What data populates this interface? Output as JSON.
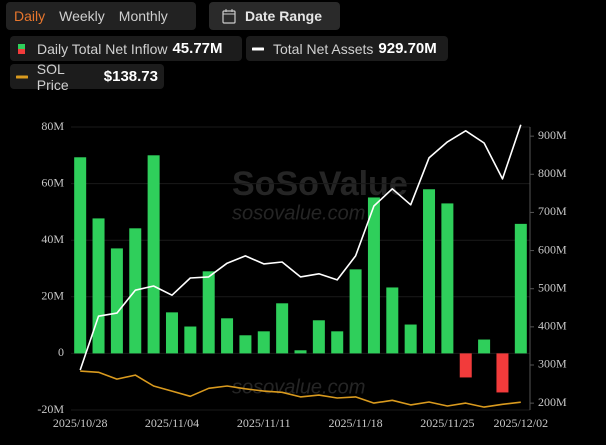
{
  "tabs": [
    "Daily",
    "Weekly",
    "Monthly"
  ],
  "active_tab": 0,
  "date_range_button": "Date Range",
  "watermark": {
    "brand": "SoSoValue",
    "url": "sosovalue.com"
  },
  "chart_data": {
    "type": "bar",
    "categories": [
      "2025/10/28",
      null,
      null,
      null,
      null,
      "2025/11/04",
      null,
      null,
      null,
      null,
      "2025/11/11",
      null,
      null,
      null,
      null,
      "2025/11/18",
      null,
      null,
      null,
      null,
      "2025/11/25",
      null,
      null,
      null,
      "2025/12/02"
    ],
    "ylim": [
      -20,
      80
    ],
    "yticks": [
      {
        "value": -20,
        "label": "-20M"
      },
      0,
      {
        "value": 20,
        "label": "20M"
      },
      {
        "value": 40,
        "label": "40M"
      },
      {
        "value": 60,
        "label": "60M"
      },
      {
        "value": 80,
        "label": "80M"
      }
    ],
    "y2lim": [
      182,
      924
    ],
    "y2ticks": [
      {
        "value": 200,
        "label": "200M"
      },
      {
        "value": 300,
        "label": "300M"
      },
      {
        "value": 400,
        "label": "400M"
      },
      {
        "value": 500,
        "label": "500M"
      },
      {
        "value": 600,
        "label": "600M"
      },
      {
        "value": 700,
        "label": "700M"
      },
      {
        "value": 800,
        "label": "800M"
      },
      {
        "value": 900,
        "label": "900M"
      }
    ],
    "y3lim": [
      125,
      620
    ],
    "grid": true,
    "series": [
      {
        "name": "Daily Total Net Inflow",
        "type": "bar",
        "color": "#2fcf5b",
        "negative_color": "#f23b3b",
        "latest_label": "45.77M",
        "values": [
          69.3,
          47.7,
          37.1,
          44.2,
          70,
          14.5,
          9.5,
          29,
          12.4,
          6.4,
          7.8,
          17.7,
          1.1,
          11.7,
          7.8,
          29.7,
          55.1,
          23.3,
          10.2,
          58,
          53,
          -8.5,
          4.9,
          -13.8,
          45.77
        ]
      },
      {
        "name": "Total Net Assets",
        "type": "line",
        "axis": "y2",
        "color": "#ffffff",
        "latest_label": "929.70M",
        "values": [
          287,
          428,
          436,
          496,
          507,
          483,
          528,
          531,
          567,
          586,
          565,
          570,
          531,
          539,
          523,
          586,
          717,
          762,
          720,
          843,
          885,
          914,
          882,
          788,
          929.7
        ]
      },
      {
        "name": "SOL Price",
        "type": "line",
        "axis": "y3",
        "color": "#d99a1e",
        "latest_label": "$138.73",
        "values": [
          193,
          191,
          179,
          186,
          167,
          158,
          149,
          163,
          167,
          162,
          158,
          156,
          148,
          151,
          146,
          148,
          137,
          142,
          134,
          139,
          132,
          137,
          130,
          135,
          138.73
        ]
      }
    ]
  }
}
